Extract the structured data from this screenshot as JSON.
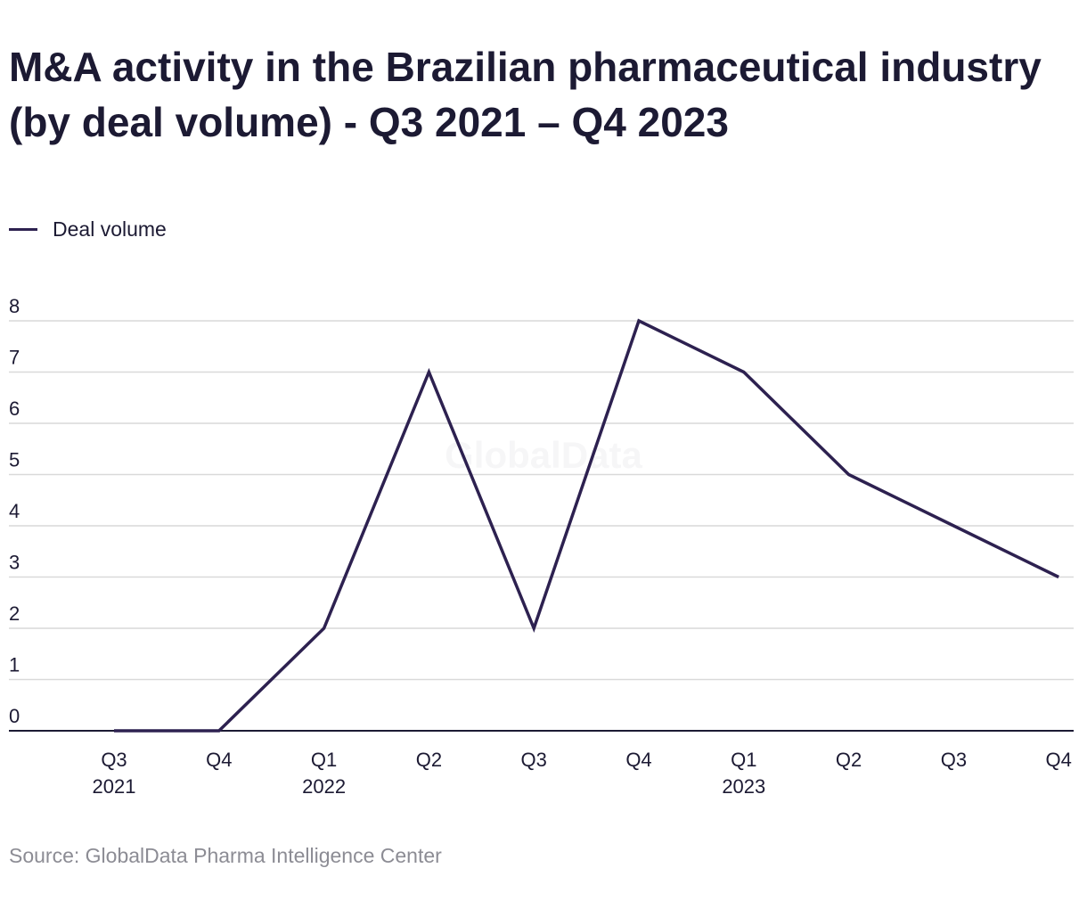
{
  "page": {
    "title": "M&A activity in the Brazilian pharmaceutical industry (by deal volume) - Q3 2021 – Q4 2023",
    "source": "Source: GlobalData Pharma Intelligence Center",
    "watermark": "GlobalData"
  },
  "colors": {
    "line": "#2d2150",
    "grid": "#d9d9d9",
    "axis": "#1c1a33",
    "text": "#1c1a33",
    "source_text": "#8c8c94"
  },
  "chart_data": {
    "type": "line",
    "categories": [
      [
        "Q3",
        "2021"
      ],
      [
        "Q4",
        ""
      ],
      [
        "Q1",
        "2022"
      ],
      [
        "Q2",
        ""
      ],
      [
        "Q3",
        ""
      ],
      [
        "Q4",
        ""
      ],
      [
        "Q1",
        "2023"
      ],
      [
        "Q2",
        ""
      ],
      [
        "Q3",
        ""
      ],
      [
        "Q4",
        ""
      ]
    ],
    "series": [
      {
        "name": "Deal volume",
        "values": [
          0,
          0,
          2,
          7,
          2,
          8,
          7,
          5,
          4,
          3
        ]
      }
    ],
    "yticks": [
      0,
      1,
      2,
      3,
      4,
      5,
      6,
      7,
      8
    ],
    "ylim": [
      0,
      8
    ],
    "grid": true,
    "legend_position": "top-left"
  }
}
